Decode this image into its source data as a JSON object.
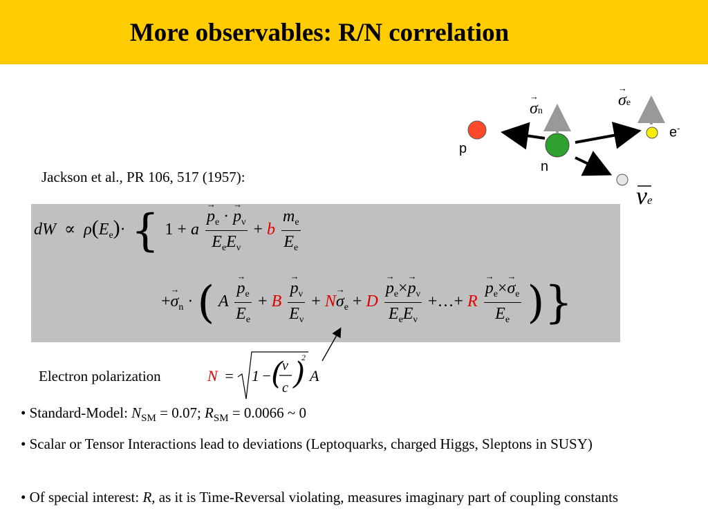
{
  "title": "More observables: R/N correlation",
  "diagram": {
    "sigma_n_label": "n",
    "sigma_e_label": "e",
    "proton_label": "p",
    "neutron_label": "n",
    "electron_label": "e",
    "electron_sup": "-",
    "antineutrino_sub": "e",
    "colors": {
      "proton": "#ff4a2a",
      "neutron": "#2ea12e",
      "electron": "#ffee00",
      "antineutrino": "#e6e6e6",
      "arrow": "#000000",
      "spin": "#999999"
    }
  },
  "reference": "Jackson et al., PR 106, 517 (1957):",
  "equation": {
    "line1": {
      "dW": "dW",
      "propto": "∝",
      "rho": "ρ",
      "E": "E",
      "sub_e": "e",
      "one": "1",
      "a": "a",
      "b": "b",
      "m": "m",
      "nu": "ν",
      "plus": "+"
    },
    "line2": {
      "sigma": "σ",
      "sub_n": "n",
      "A": "A",
      "B": "B",
      "N": "N",
      "D": "D",
      "R": "R",
      "dots": "…",
      "times": "×",
      "p": "p"
    },
    "highlight_color": "#e00000",
    "box_color": "#c0c0c0"
  },
  "electron_polarization": {
    "label": "Electron polarization",
    "N": "N",
    "eq": "=",
    "one": "1",
    "minus": "−",
    "v": "v",
    "c": "c",
    "power": "2",
    "A": "A"
  },
  "bullets": [
    {
      "prefix": "• Standard-Model: ",
      "N": "N",
      "N_sub": "SM",
      "mid": " = 0.07; ",
      "R": "R",
      "R_sub": "SM",
      "tail": " = 0.0066 ~ 0"
    },
    {
      "text": "• Scalar or Tensor Interactions lead to deviations (Leptoquarks, charged Higgs, Sleptons in SUSY)"
    },
    {
      "prefix": "• Of special interest: ",
      "R": "R",
      "tail": ", as it is Time-Reversal violating, measures imaginary part of coupling constants"
    }
  ],
  "accent_color": "#ffcc00"
}
